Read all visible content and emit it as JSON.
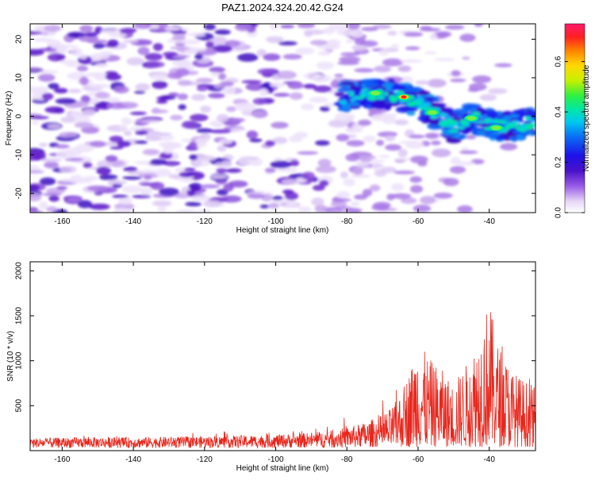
{
  "figure": {
    "title": "PAZ1.2024.324.20.42.G24"
  },
  "chart_data": [
    {
      "type": "heatmap",
      "xlabel": "Height of straight line (km)",
      "ylabel": "Frequency (Hz)",
      "xlim": [
        -169,
        -27
      ],
      "ylim": [
        -25,
        24
      ],
      "xticks": [
        -160,
        -140,
        -120,
        -100,
        -80,
        -60,
        -40
      ],
      "yticks": [
        -20,
        -10,
        0,
        10,
        20
      ],
      "colorbar": {
        "label": "Normalized spectral amplitude",
        "range": [
          0,
          0.75
        ],
        "ticks": [
          0.0,
          0.2,
          0.4,
          0.6
        ],
        "tick_labels": [
          "0.0",
          "0.2",
          "0.4",
          "0.6"
        ]
      },
      "ridge": [
        {
          "x": -82,
          "y": 5
        },
        {
          "x": -76,
          "y": 5.5
        },
        {
          "x": -70,
          "y": 6
        },
        {
          "x": -64,
          "y": 5
        },
        {
          "x": -59,
          "y": 3
        },
        {
          "x": -54,
          "y": 0
        },
        {
          "x": -50,
          "y": -3
        },
        {
          "x": -45,
          "y": 0
        },
        {
          "x": -40,
          "y": -2
        },
        {
          "x": -36,
          "y": -3
        },
        {
          "x": -30,
          "y": -2
        },
        {
          "x": -27,
          "y": -1
        }
      ],
      "peaks": [
        {
          "x": -72,
          "y": 6,
          "value": 0.45
        },
        {
          "x": -64,
          "y": 5,
          "value": 0.7
        },
        {
          "x": -56,
          "y": 1,
          "value": 0.35
        },
        {
          "x": -45,
          "y": -0.5,
          "value": 0.45
        },
        {
          "x": -38,
          "y": -3,
          "value": 0.3
        }
      ],
      "grid": false
    },
    {
      "type": "line",
      "xlabel": "Height of straight line (km)",
      "ylabel": "SNR (10 * v/v)",
      "xlim": [
        -169,
        -27
      ],
      "ylim": [
        0,
        2100
      ],
      "xticks": [
        -160,
        -140,
        -120,
        -100,
        -80,
        -60,
        -40
      ],
      "yticks": [
        500,
        1000,
        1500,
        2000
      ],
      "series": [
        {
          "color": "#e8261c",
          "x": [
            -169,
            -160,
            -150,
            -140,
            -130,
            -120,
            -110,
            -100,
            -90,
            -85,
            -80,
            -75,
            -70,
            -68,
            -66,
            -64,
            -62,
            -60,
            -58,
            -56,
            -54,
            -52,
            -50,
            -48,
            -46,
            -44,
            -42,
            -40,
            -38,
            -36,
            -34,
            -32,
            -30,
            -28,
            -27
          ],
          "values": [
            110,
            115,
            120,
            118,
            125,
            130,
            140,
            150,
            170,
            190,
            230,
            280,
            360,
            420,
            520,
            700,
            900,
            1200,
            1050,
            950,
            900,
            800,
            700,
            850,
            950,
            1150,
            1400,
            1650,
            1200,
            1050,
            900,
            800,
            750,
            700,
            650
          ]
        }
      ],
      "grid": false
    }
  ]
}
